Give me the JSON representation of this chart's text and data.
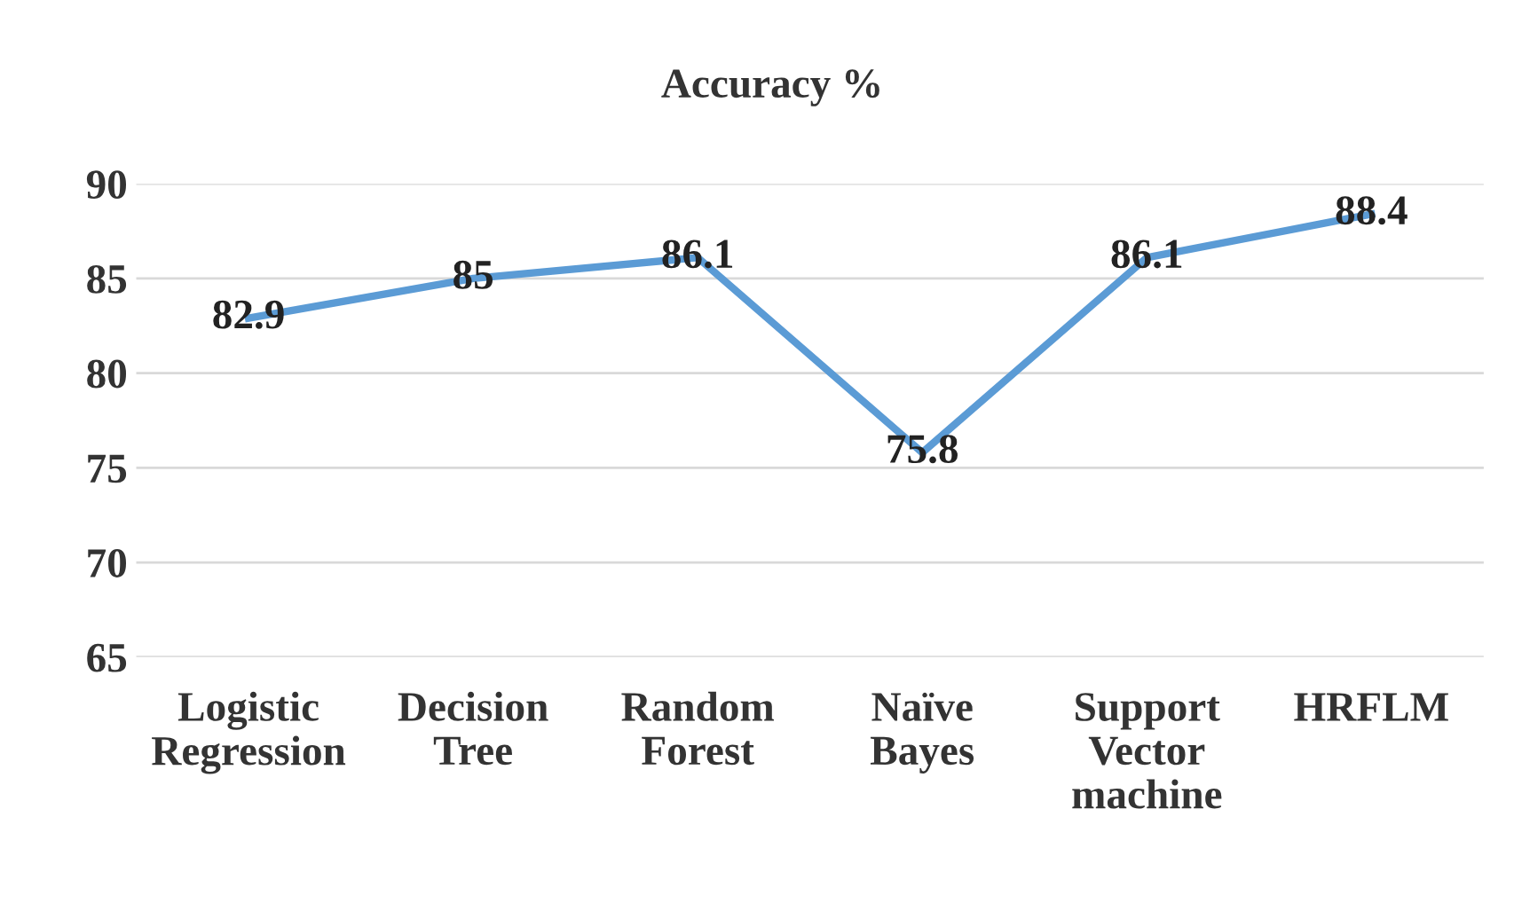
{
  "chart_data": {
    "type": "line",
    "title": "Accuracy %",
    "categories": [
      "Logistic\nRegression",
      "Decision\nTree",
      "Random\nForest",
      "Naïve\nBayes",
      "Support\nVector\nmachine",
      "HRFLM"
    ],
    "values": [
      82.9,
      85,
      86.1,
      75.8,
      86.1,
      88.4
    ],
    "color": "#5b9bd5",
    "ylim": [
      65,
      90
    ],
    "yticks": [
      65,
      70,
      75,
      80,
      85,
      90
    ],
    "grid": "y",
    "data_labels": true,
    "marker": "none",
    "line_style": "solid"
  }
}
